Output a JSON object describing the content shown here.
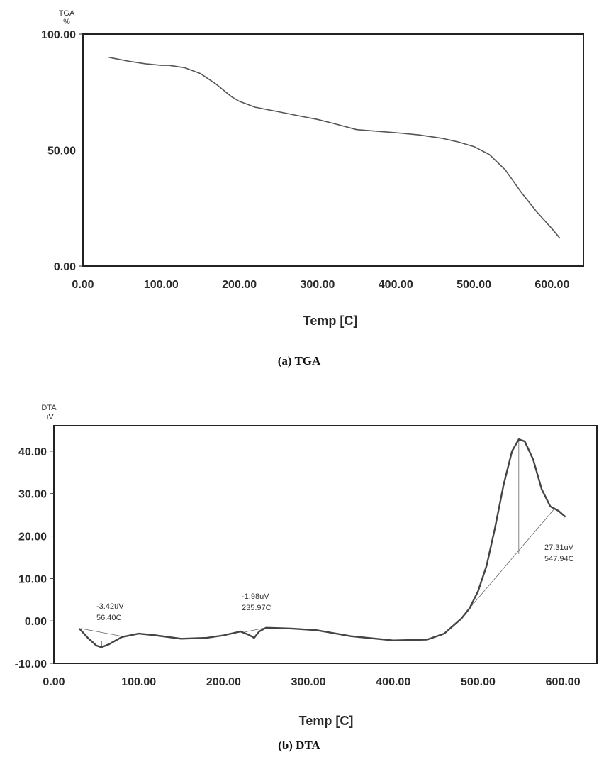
{
  "chart_data": [
    {
      "type": "line",
      "title": "",
      "ylabel_top": "TGA",
      "ylabel_unit": "%",
      "xlabel": "Temp [C]",
      "caption": "(a) TGA",
      "xlim": [
        0,
        640
      ],
      "ylim": [
        0,
        100
      ],
      "x_ticks": [
        "0.00",
        "100.00",
        "200.00",
        "300.00",
        "400.00",
        "500.00",
        "600.00"
      ],
      "y_ticks": [
        "0.00",
        "50.00",
        "100.00"
      ],
      "grid": false,
      "series": [
        {
          "x": [
            33,
            40,
            60,
            80,
            100,
            110,
            130,
            150,
            170,
            190,
            200,
            220,
            250,
            280,
            300,
            320,
            350,
            380,
            400,
            430,
            460,
            480,
            500,
            520,
            540,
            560,
            580,
            600,
            610
          ],
          "values": [
            90,
            89.5,
            88.2,
            87.2,
            86.5,
            86.5,
            85.5,
            83,
            78.5,
            73,
            71,
            68.5,
            66.5,
            64.5,
            63.2,
            61.5,
            58.8,
            58,
            57.5,
            56.5,
            55,
            53.5,
            51.5,
            48,
            41.5,
            32,
            23.5,
            16,
            12
          ]
        }
      ]
    },
    {
      "type": "line",
      "title": "",
      "ylabel_top": "DTA",
      "ylabel_unit": "uV",
      "xlabel": "Temp [C]",
      "caption": "(b) DTA",
      "xlim": [
        0,
        640
      ],
      "ylim": [
        -10,
        46
      ],
      "x_ticks": [
        "0.00",
        "100.00",
        "200.00",
        "300.00",
        "400.00",
        "500.00",
        "600.00"
      ],
      "y_ticks": [
        "40.00",
        "30.00",
        "20.00",
        "10.00",
        "0.00",
        "-10.00"
      ],
      "grid": false,
      "series": [
        {
          "x": [
            30,
            40,
            50,
            56,
            65,
            80,
            100,
            120,
            150,
            180,
            200,
            220,
            230,
            236,
            242,
            250,
            280,
            310,
            350,
            400,
            440,
            460,
            480,
            490,
            500,
            510,
            520,
            530,
            540,
            548,
            555,
            565,
            575,
            585,
            595,
            603
          ],
          "values": [
            -1.8,
            -4,
            -5.8,
            -6.2,
            -5.5,
            -3.8,
            -3,
            -3.4,
            -4.2,
            -4,
            -3.4,
            -2.5,
            -3.3,
            -4,
            -2.5,
            -1.6,
            -1.8,
            -2.2,
            -3.6,
            -4.6,
            -4.4,
            -3,
            0.5,
            3,
            7,
            13,
            22,
            32,
            40,
            42.8,
            42.3,
            38,
            31,
            27,
            25.9,
            24.5
          ]
        }
      ],
      "annotations": [
        {
          "x": 56.4,
          "value": "-3.42uV",
          "temp": "56.40C"
        },
        {
          "x": 235.97,
          "value": "-1.98uV",
          "temp": "235.97C"
        },
        {
          "x": 547.94,
          "value": "27.31uV",
          "temp": "547.94C"
        }
      ]
    }
  ]
}
